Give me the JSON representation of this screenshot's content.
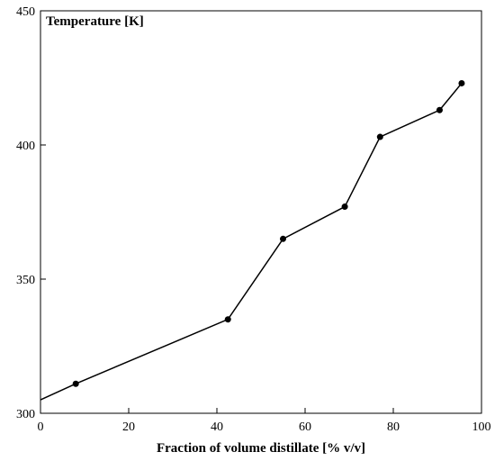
{
  "chart_data": {
    "type": "line",
    "title": "",
    "xlabel": "Fraction of volume distillate [% v/v]",
    "ylabel": "Temperature [K]",
    "xlim": [
      0,
      100
    ],
    "ylim": [
      300,
      450
    ],
    "x_ticks": [
      0,
      20,
      40,
      60,
      80,
      100
    ],
    "y_ticks": [
      300,
      350,
      400,
      450
    ],
    "grid": false,
    "legend": "none",
    "line_color": "#000000",
    "marker_color": "#000000",
    "line_start": [
      0,
      305
    ],
    "series": [
      {
        "x": [
          8,
          42.5,
          55,
          69,
          77,
          90.5,
          95.5
        ],
        "y": [
          311,
          335,
          365,
          377,
          403,
          413,
          423
        ]
      }
    ]
  }
}
